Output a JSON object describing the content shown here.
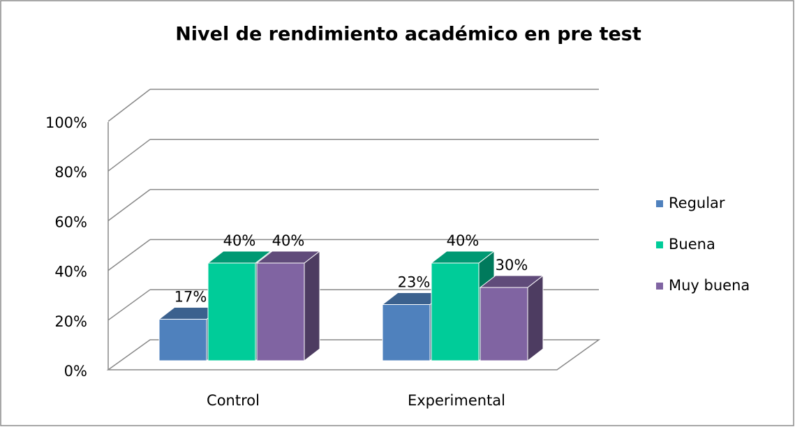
{
  "chart_data": {
    "type": "bar3d",
    "title": "Nivel de rendimiento académico en pre test",
    "categories": [
      "Control",
      "Experimental"
    ],
    "series": [
      {
        "name": "Regular",
        "color": "#4f81bd",
        "values": [
          17,
          23
        ],
        "value_labels": [
          "17%",
          "23%"
        ]
      },
      {
        "name": "Buena",
        "color": "#00cc99",
        "values": [
          40,
          40
        ],
        "value_labels": [
          "40%",
          "40%"
        ]
      },
      {
        "name": "Muy buena",
        "color": "#8064a2",
        "values": [
          40,
          30
        ],
        "value_labels": [
          "40%",
          "30%"
        ]
      }
    ],
    "ylim": [
      0,
      100
    ],
    "yticks": [
      {
        "value": 0,
        "label": "0%"
      },
      {
        "value": 20,
        "label": "20%"
      },
      {
        "value": 40,
        "label": "40%"
      },
      {
        "value": 60,
        "label": "60%"
      },
      {
        "value": 80,
        "label": "80%"
      },
      {
        "value": 100,
        "label": "100%"
      }
    ],
    "grid": true,
    "legend": "right"
  }
}
